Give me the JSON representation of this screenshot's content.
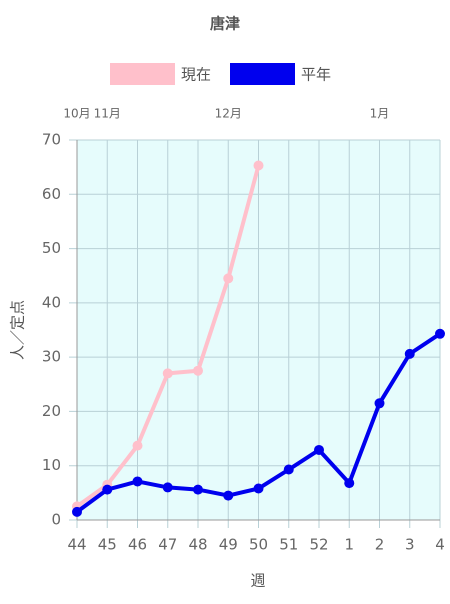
{
  "chart_data": {
    "type": "line",
    "title": "唐津",
    "categories": [
      "44",
      "45",
      "46",
      "47",
      "48",
      "49",
      "50",
      "51",
      "52",
      "1",
      "2",
      "3",
      "4"
    ],
    "top_categories": [
      "10月",
      "11月",
      null,
      null,
      null,
      "12月",
      null,
      null,
      null,
      null,
      "1月",
      null,
      null
    ],
    "x_label": "週",
    "y_label": "人／定点",
    "series": [
      {
        "name": "現在",
        "color": "#ffc0cb",
        "values": [
          2.5,
          6.5,
          13.7,
          27,
          27.5,
          44.5,
          65.3,
          null,
          null,
          null,
          null,
          null,
          null
        ]
      },
      {
        "name": "平年",
        "color": "#0000ee",
        "values": [
          1.5,
          5.6,
          7.1,
          6.0,
          5.6,
          4.5,
          5.8,
          9.3,
          12.9,
          6.8,
          21.5,
          30.6,
          34.3
        ]
      }
    ],
    "ylim": [
      0,
      70
    ],
    "yticks": [
      0,
      10,
      20,
      30,
      40,
      50,
      60,
      70
    ],
    "grid": true,
    "legend": "top"
  }
}
